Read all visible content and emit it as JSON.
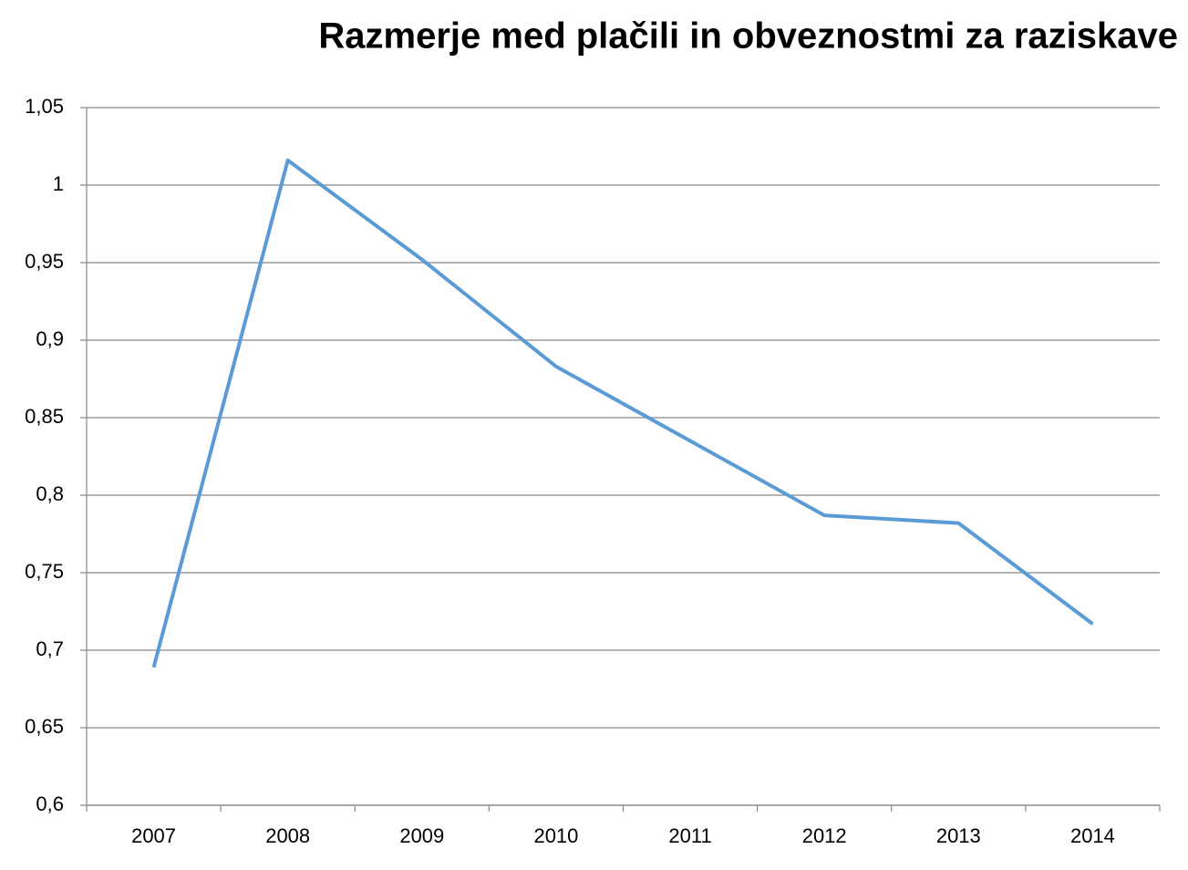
{
  "chart_data": {
    "type": "line",
    "title": "Razmerje med plačili in obveznostmi za raziskave",
    "categories": [
      "2007",
      "2008",
      "2009",
      "2010",
      "2011",
      "2012",
      "2013",
      "2014"
    ],
    "series": [
      {
        "color": "#5b9bd5",
        "values": [
          0.689,
          1.016,
          0.952,
          0.883,
          0.835,
          0.787,
          0.782,
          0.717
        ]
      }
    ],
    "ylim": [
      0.6,
      1.05
    ],
    "yticks": [
      {
        "value": 0.6,
        "label": "0,6"
      },
      {
        "value": 0.65,
        "label": "0,65"
      },
      {
        "value": 0.7,
        "label": "0,7"
      },
      {
        "value": 0.75,
        "label": "0,75"
      },
      {
        "value": 0.8,
        "label": "0,8"
      },
      {
        "value": 0.85,
        "label": "0,85"
      },
      {
        "value": 0.9,
        "label": "0,9"
      },
      {
        "value": 0.95,
        "label": "0,95"
      },
      1,
      {
        "value": 1.05,
        "label": "1,05"
      }
    ],
    "grid": true
  }
}
